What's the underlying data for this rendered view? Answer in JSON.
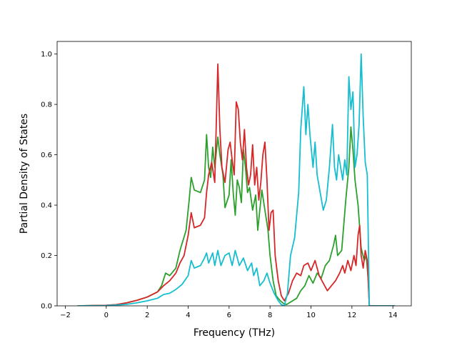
{
  "chart_data": {
    "type": "line",
    "title": "",
    "xlabel": "Frequency (THz)",
    "ylabel": "Partial Density of States",
    "xlim": [
      -2.4,
      14.9
    ],
    "ylim": [
      0,
      1.05
    ],
    "xticks": [
      -2,
      0,
      2,
      4,
      6,
      8,
      10,
      12,
      14
    ],
    "yticks": [
      0.0,
      0.2,
      0.4,
      0.6,
      0.8,
      1.0
    ],
    "xtick_labels": [
      "−2",
      "0",
      "2",
      "4",
      "6",
      "8",
      "10",
      "12",
      "14"
    ],
    "ytick_labels": [
      "0.0",
      "0.2",
      "0.4",
      "0.6",
      "0.8",
      "1.0"
    ],
    "grid": false,
    "legend": "none",
    "series": [
      {
        "color": "#2ca02c",
        "points": [
          [
            -1.4,
            0
          ],
          [
            0,
            0.002
          ],
          [
            0.5,
            0.005
          ],
          [
            1,
            0.012
          ],
          [
            1.5,
            0.022
          ],
          [
            2,
            0.035
          ],
          [
            2.5,
            0.055
          ],
          [
            2.7,
            0.08
          ],
          [
            2.9,
            0.13
          ],
          [
            3.1,
            0.12
          ],
          [
            3.4,
            0.15
          ],
          [
            3.6,
            0.22
          ],
          [
            3.9,
            0.3
          ],
          [
            4.05,
            0.42
          ],
          [
            4.15,
            0.51
          ],
          [
            4.3,
            0.46
          ],
          [
            4.6,
            0.45
          ],
          [
            4.8,
            0.5
          ],
          [
            4.9,
            0.68
          ],
          [
            5.0,
            0.55
          ],
          [
            5.1,
            0.51
          ],
          [
            5.2,
            0.63
          ],
          [
            5.3,
            0.55
          ],
          [
            5.45,
            0.67
          ],
          [
            5.55,
            0.6
          ],
          [
            5.7,
            0.52
          ],
          [
            5.8,
            0.39
          ],
          [
            6.0,
            0.44
          ],
          [
            6.1,
            0.58
          ],
          [
            6.2,
            0.45
          ],
          [
            6.3,
            0.36
          ],
          [
            6.4,
            0.5
          ],
          [
            6.5,
            0.47
          ],
          [
            6.6,
            0.41
          ],
          [
            6.7,
            0.62
          ],
          [
            6.8,
            0.55
          ],
          [
            6.9,
            0.45
          ],
          [
            7.0,
            0.47
          ],
          [
            7.15,
            0.38
          ],
          [
            7.3,
            0.44
          ],
          [
            7.4,
            0.3
          ],
          [
            7.6,
            0.46
          ],
          [
            7.75,
            0.38
          ],
          [
            7.9,
            0.3
          ],
          [
            8.0,
            0.2
          ],
          [
            8.15,
            0.1
          ],
          [
            8.3,
            0.04
          ],
          [
            8.5,
            0.02
          ],
          [
            8.65,
            0.01
          ],
          [
            8.8,
            0.005
          ],
          [
            9.0,
            0.015
          ],
          [
            9.3,
            0.03
          ],
          [
            9.5,
            0.06
          ],
          [
            9.7,
            0.08
          ],
          [
            9.9,
            0.12
          ],
          [
            10.1,
            0.09
          ],
          [
            10.3,
            0.13
          ],
          [
            10.5,
            0.11
          ],
          [
            10.7,
            0.16
          ],
          [
            10.9,
            0.18
          ],
          [
            11.1,
            0.24
          ],
          [
            11.2,
            0.28
          ],
          [
            11.3,
            0.2
          ],
          [
            11.5,
            0.22
          ],
          [
            11.7,
            0.42
          ],
          [
            11.85,
            0.55
          ],
          [
            11.95,
            0.71
          ],
          [
            12.05,
            0.62
          ],
          [
            12.15,
            0.5
          ],
          [
            12.3,
            0.4
          ],
          [
            12.45,
            0.23
          ],
          [
            12.6,
            0.18
          ],
          [
            12.7,
            0.2
          ],
          [
            12.8,
            0.1
          ],
          [
            12.85,
            0
          ],
          [
            14.1,
            0
          ]
        ]
      },
      {
        "color": "#d62728",
        "points": [
          [
            -1.4,
            0
          ],
          [
            0,
            0.002
          ],
          [
            0.5,
            0.005
          ],
          [
            1,
            0.012
          ],
          [
            1.5,
            0.022
          ],
          [
            2,
            0.035
          ],
          [
            2.5,
            0.055
          ],
          [
            2.8,
            0.08
          ],
          [
            3.1,
            0.1
          ],
          [
            3.4,
            0.13
          ],
          [
            3.6,
            0.17
          ],
          [
            3.8,
            0.2
          ],
          [
            4.0,
            0.28
          ],
          [
            4.15,
            0.37
          ],
          [
            4.3,
            0.31
          ],
          [
            4.6,
            0.32
          ],
          [
            4.8,
            0.35
          ],
          [
            4.9,
            0.45
          ],
          [
            5.0,
            0.52
          ],
          [
            5.15,
            0.57
          ],
          [
            5.3,
            0.49
          ],
          [
            5.45,
            0.96
          ],
          [
            5.55,
            0.7
          ],
          [
            5.65,
            0.55
          ],
          [
            5.8,
            0.49
          ],
          [
            5.95,
            0.62
          ],
          [
            6.05,
            0.65
          ],
          [
            6.15,
            0.58
          ],
          [
            6.25,
            0.52
          ],
          [
            6.35,
            0.81
          ],
          [
            6.45,
            0.78
          ],
          [
            6.55,
            0.65
          ],
          [
            6.65,
            0.58
          ],
          [
            6.75,
            0.7
          ],
          [
            6.85,
            0.55
          ],
          [
            6.95,
            0.48
          ],
          [
            7.05,
            0.52
          ],
          [
            7.15,
            0.64
          ],
          [
            7.25,
            0.48
          ],
          [
            7.35,
            0.55
          ],
          [
            7.45,
            0.42
          ],
          [
            7.55,
            0.49
          ],
          [
            7.65,
            0.6
          ],
          [
            7.75,
            0.65
          ],
          [
            7.85,
            0.5
          ],
          [
            7.95,
            0.3
          ],
          [
            8.05,
            0.37
          ],
          [
            8.15,
            0.38
          ],
          [
            8.25,
            0.2
          ],
          [
            8.4,
            0.1
          ],
          [
            8.55,
            0.04
          ],
          [
            8.7,
            0.02
          ],
          [
            8.9,
            0.05
          ],
          [
            9.1,
            0.1
          ],
          [
            9.3,
            0.13
          ],
          [
            9.5,
            0.12
          ],
          [
            9.65,
            0.16
          ],
          [
            9.85,
            0.17
          ],
          [
            10.0,
            0.14
          ],
          [
            10.2,
            0.18
          ],
          [
            10.4,
            0.12
          ],
          [
            10.6,
            0.09
          ],
          [
            10.8,
            0.06
          ],
          [
            11.0,
            0.08
          ],
          [
            11.2,
            0.1
          ],
          [
            11.4,
            0.13
          ],
          [
            11.55,
            0.16
          ],
          [
            11.65,
            0.13
          ],
          [
            11.8,
            0.18
          ],
          [
            11.95,
            0.14
          ],
          [
            12.1,
            0.2
          ],
          [
            12.2,
            0.16
          ],
          [
            12.3,
            0.28
          ],
          [
            12.38,
            0.32
          ],
          [
            12.45,
            0.2
          ],
          [
            12.55,
            0.15
          ],
          [
            12.65,
            0.22
          ],
          [
            12.75,
            0.18
          ],
          [
            12.85,
            0
          ],
          [
            14.1,
            0
          ]
        ]
      },
      {
        "color": "#17becf",
        "points": [
          [
            -1.4,
            0
          ],
          [
            0,
            0.001
          ],
          [
            0.5,
            0.003
          ],
          [
            1,
            0.006
          ],
          [
            1.5,
            0.012
          ],
          [
            2,
            0.02
          ],
          [
            2.5,
            0.03
          ],
          [
            2.8,
            0.045
          ],
          [
            3.1,
            0.05
          ],
          [
            3.4,
            0.065
          ],
          [
            3.7,
            0.085
          ],
          [
            4.0,
            0.12
          ],
          [
            4.15,
            0.18
          ],
          [
            4.3,
            0.15
          ],
          [
            4.6,
            0.16
          ],
          [
            4.8,
            0.19
          ],
          [
            4.9,
            0.21
          ],
          [
            5.0,
            0.17
          ],
          [
            5.2,
            0.21
          ],
          [
            5.3,
            0.16
          ],
          [
            5.45,
            0.22
          ],
          [
            5.6,
            0.16
          ],
          [
            5.8,
            0.2
          ],
          [
            6.0,
            0.21
          ],
          [
            6.15,
            0.16
          ],
          [
            6.3,
            0.22
          ],
          [
            6.5,
            0.16
          ],
          [
            6.7,
            0.19
          ],
          [
            6.9,
            0.14
          ],
          [
            7.1,
            0.17
          ],
          [
            7.2,
            0.12
          ],
          [
            7.35,
            0.15
          ],
          [
            7.5,
            0.08
          ],
          [
            7.7,
            0.1
          ],
          [
            7.85,
            0.13
          ],
          [
            8.0,
            0.09
          ],
          [
            8.2,
            0.05
          ],
          [
            8.4,
            0.02
          ],
          [
            8.55,
            0.005
          ],
          [
            8.7,
            0
          ],
          [
            8.85,
            0.05
          ],
          [
            9.0,
            0.2
          ],
          [
            9.2,
            0.27
          ],
          [
            9.4,
            0.45
          ],
          [
            9.5,
            0.7
          ],
          [
            9.65,
            0.87
          ],
          [
            9.75,
            0.68
          ],
          [
            9.85,
            0.8
          ],
          [
            9.95,
            0.68
          ],
          [
            10.1,
            0.55
          ],
          [
            10.2,
            0.65
          ],
          [
            10.3,
            0.52
          ],
          [
            10.45,
            0.45
          ],
          [
            10.6,
            0.38
          ],
          [
            10.75,
            0.42
          ],
          [
            10.9,
            0.55
          ],
          [
            11.05,
            0.72
          ],
          [
            11.15,
            0.55
          ],
          [
            11.25,
            0.5
          ],
          [
            11.35,
            0.6
          ],
          [
            11.45,
            0.55
          ],
          [
            11.55,
            0.5
          ],
          [
            11.65,
            0.58
          ],
          [
            11.75,
            0.52
          ],
          [
            11.85,
            0.91
          ],
          [
            11.95,
            0.78
          ],
          [
            12.05,
            0.85
          ],
          [
            12.15,
            0.55
          ],
          [
            12.25,
            0.6
          ],
          [
            12.35,
            0.72
          ],
          [
            12.45,
            1.0
          ],
          [
            12.55,
            0.75
          ],
          [
            12.65,
            0.57
          ],
          [
            12.75,
            0.52
          ],
          [
            12.85,
            0
          ],
          [
            14.1,
            0
          ]
        ]
      }
    ]
  }
}
